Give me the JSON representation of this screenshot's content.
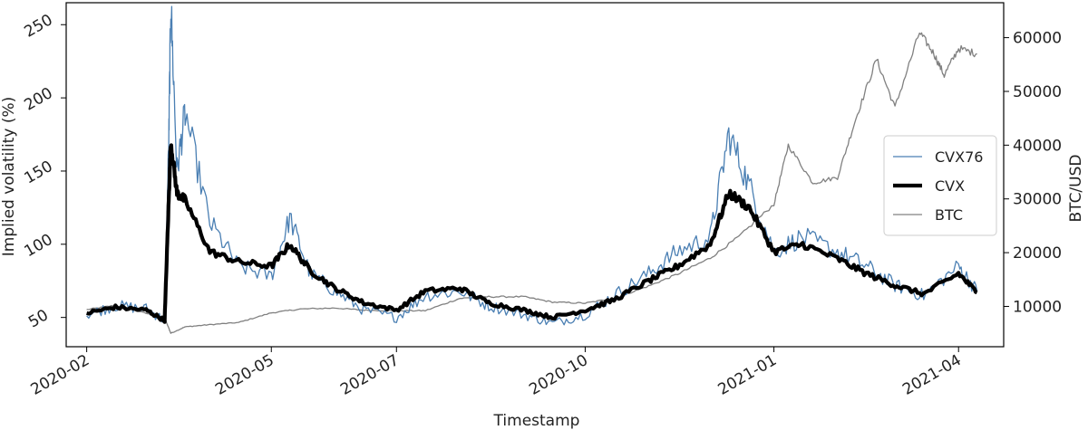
{
  "chart_data": {
    "type": "line",
    "title": "",
    "xlabel": "Timestamp",
    "ylabel_left": "Implied volatility (%)",
    "ylabel_right": "BTC/USD",
    "x_ticks": [
      "2020-02",
      "2020-05",
      "2020-07",
      "2020-10",
      "2021-01",
      "2021-04"
    ],
    "x_tick_dates": [
      "2020-02-01",
      "2020-05-01",
      "2020-07-01",
      "2020-10-01",
      "2021-01-01",
      "2021-04-01"
    ],
    "xlim": [
      "2020-01-22",
      "2021-04-23"
    ],
    "y_left_ticks": [
      50,
      100,
      150,
      200,
      250
    ],
    "y_left_lim": [
      30,
      265
    ],
    "y_right_ticks": [
      10000,
      20000,
      30000,
      40000,
      50000,
      60000
    ],
    "y_right_lim": [
      2500,
      66500
    ],
    "grid": false,
    "legend_position": "center-right",
    "series": [
      {
        "name": "CVX76",
        "axis": "left",
        "color": "#4a7fb3",
        "x": [
          "2020-02-01",
          "2020-02-15",
          "2020-03-01",
          "2020-03-10",
          "2020-03-12",
          "2020-03-13",
          "2020-03-16",
          "2020-03-20",
          "2020-04-01",
          "2020-04-15",
          "2020-05-01",
          "2020-05-10",
          "2020-05-20",
          "2020-06-01",
          "2020-06-15",
          "2020-07-01",
          "2020-07-15",
          "2020-08-01",
          "2020-08-15",
          "2020-09-01",
          "2020-09-15",
          "2020-10-01",
          "2020-10-15",
          "2020-11-01",
          "2020-11-15",
          "2020-12-01",
          "2020-12-10",
          "2020-12-20",
          "2021-01-01",
          "2021-01-15",
          "2021-02-01",
          "2021-02-15",
          "2021-03-01",
          "2021-03-15",
          "2021-04-01",
          "2021-04-10"
        ],
        "values": [
          52,
          58,
          56,
          48,
          170,
          265,
          150,
          190,
          115,
          85,
          78,
          118,
          80,
          68,
          55,
          50,
          65,
          68,
          58,
          52,
          46,
          52,
          65,
          80,
          95,
          105,
          175,
          140,
          95,
          105,
          95,
          85,
          72,
          65,
          85,
          68
        ]
      },
      {
        "name": "CVX",
        "axis": "left",
        "color": "#000000",
        "x": [
          "2020-02-01",
          "2020-02-15",
          "2020-03-01",
          "2020-03-10",
          "2020-03-12",
          "2020-03-13",
          "2020-03-16",
          "2020-03-20",
          "2020-04-01",
          "2020-04-15",
          "2020-05-01",
          "2020-05-10",
          "2020-05-20",
          "2020-06-01",
          "2020-06-15",
          "2020-07-01",
          "2020-07-15",
          "2020-08-01",
          "2020-08-15",
          "2020-09-01",
          "2020-09-15",
          "2020-10-01",
          "2020-10-15",
          "2020-11-01",
          "2020-11-15",
          "2020-12-01",
          "2020-12-10",
          "2020-12-20",
          "2021-01-01",
          "2021-01-15",
          "2021-02-01",
          "2021-02-15",
          "2021-03-01",
          "2021-03-15",
          "2021-04-01",
          "2021-04-10"
        ],
        "values": [
          53,
          57,
          55,
          48,
          130,
          170,
          135,
          130,
          95,
          88,
          85,
          100,
          82,
          70,
          60,
          55,
          68,
          70,
          60,
          55,
          50,
          55,
          62,
          75,
          85,
          100,
          135,
          125,
          95,
          100,
          90,
          80,
          72,
          66,
          80,
          67
        ]
      },
      {
        "name": "BTC",
        "axis": "right",
        "color": "#808080",
        "x": [
          "2020-02-01",
          "2020-02-15",
          "2020-03-01",
          "2020-03-10",
          "2020-03-13",
          "2020-03-20",
          "2020-04-01",
          "2020-04-15",
          "2020-05-01",
          "2020-05-15",
          "2020-06-01",
          "2020-06-15",
          "2020-07-01",
          "2020-07-15",
          "2020-08-01",
          "2020-08-15",
          "2020-09-01",
          "2020-09-15",
          "2020-10-01",
          "2020-10-15",
          "2020-11-01",
          "2020-11-15",
          "2020-12-01",
          "2020-12-15",
          "2021-01-01",
          "2021-01-08",
          "2021-01-20",
          "2021-02-01",
          "2021-02-10",
          "2021-02-20",
          "2021-03-01",
          "2021-03-13",
          "2021-03-20",
          "2021-03-25",
          "2021-04-01",
          "2021-04-10"
        ],
        "values": [
          9400,
          10200,
          8700,
          7900,
          5000,
          6200,
          6600,
          7000,
          8800,
          9500,
          9700,
          9300,
          9200,
          9200,
          11500,
          11800,
          11800,
          10800,
          10600,
          11500,
          13800,
          16000,
          19000,
          23000,
          29000,
          40000,
          33000,
          34000,
          45000,
          56000,
          47000,
          61000,
          57000,
          53000,
          58000,
          57000
        ]
      }
    ]
  }
}
